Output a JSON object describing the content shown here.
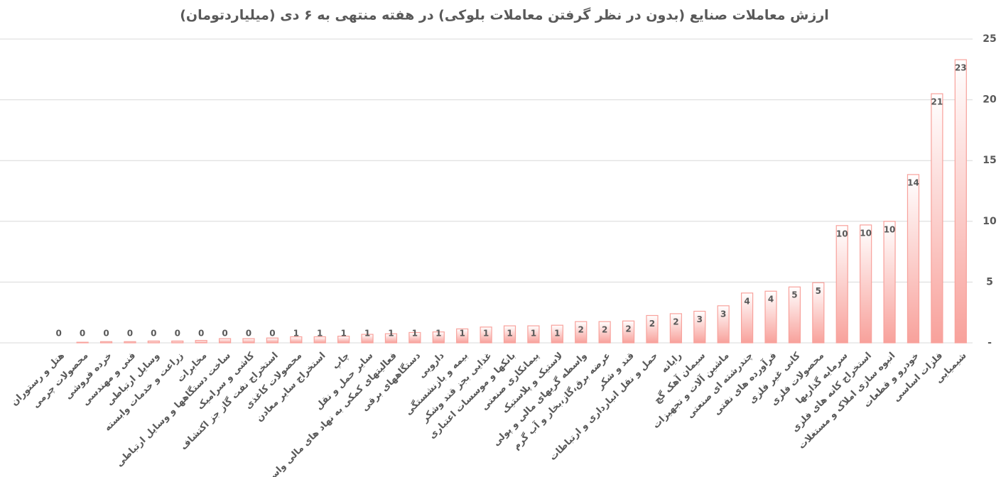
{
  "chart_data": {
    "type": "bar",
    "title": "ارزش معاملات صنایع (بدون در نظر گرفتن معاملات بلوکی) در هفته منتهی به ۶ دی (میلیاردتومان)",
    "categories": [
      "هتل و رستوران",
      "محصولات چرمی",
      "خرده فروشی",
      "فنی و مهندسی",
      "وسایل ارتباطی",
      "زراعت و خدمات وابسته",
      "مخابرات",
      "ساخت دستگاهها و وسایل ارتباطی",
      "کاشی و سرامیک",
      "استخراج نفت گاز جز اکتشاف",
      "محصولات کاغذی",
      "استخراج سایر معادن",
      "چاپ",
      "سایر حمل و نقل",
      "فعالیتهای کمکی به نهاد های مالی واسط",
      "دستگاههای برقی",
      "دارویی",
      "بیمه و بازنشستگی",
      "غذایی بجز قند وشکر",
      "بانکها و موسسات اعتباری",
      "پیمانکاری صنعتی",
      "لاستیک و پلاستیک",
      "واسطه گریهای مالی و پولی",
      "عرضه برق،گاز،بخار و آب گرم",
      "قند و شکر",
      "حمل و نقل انبارداری و ارتباطات",
      "رایانه",
      "سیمان آهک گچ",
      "ماشین آلات و تجهیزات",
      "چندرشته ای صنعتی",
      "فرآورده های نفتی",
      "کانی غیر فلزی",
      "محصولات فلزی",
      "سرمایه گذاریها",
      "استخراج کانه های فلزی",
      "انبوه سازی املاک و مستغلات",
      "خودرو و قطعات",
      "فلزات اساسی",
      "شیمیایی"
    ],
    "values": [
      0.0,
      0.05,
      0.1,
      0.1,
      0.15,
      0.15,
      0.2,
      0.35,
      0.35,
      0.4,
      0.5,
      0.5,
      0.55,
      0.7,
      0.75,
      0.85,
      0.9,
      1.15,
      1.3,
      1.4,
      1.4,
      1.45,
      1.75,
      1.75,
      1.8,
      2.25,
      2.4,
      2.6,
      3.05,
      4.1,
      4.25,
      4.6,
      4.95,
      9.65,
      9.7,
      10.0,
      13.85,
      20.5,
      23.3
    ],
    "value_labels": [
      "0",
      "0",
      "0",
      "0",
      "0",
      "0",
      "0",
      "0",
      "0",
      "0",
      "1",
      "1",
      "1",
      "1",
      "1",
      "1",
      "1",
      "1",
      "1",
      "1",
      "1",
      "1",
      "2",
      "2",
      "2",
      "2",
      "2",
      "3",
      "3",
      "4",
      "4",
      "5",
      "5",
      "10",
      "10",
      "10",
      "14",
      "21",
      "23"
    ],
    "color": "#f8a19b",
    "ylim": [
      0,
      25
    ],
    "yticks": [
      {
        "value": 0,
        "label": "-"
      },
      5,
      10,
      15,
      20,
      25
    ],
    "grid": true
  }
}
